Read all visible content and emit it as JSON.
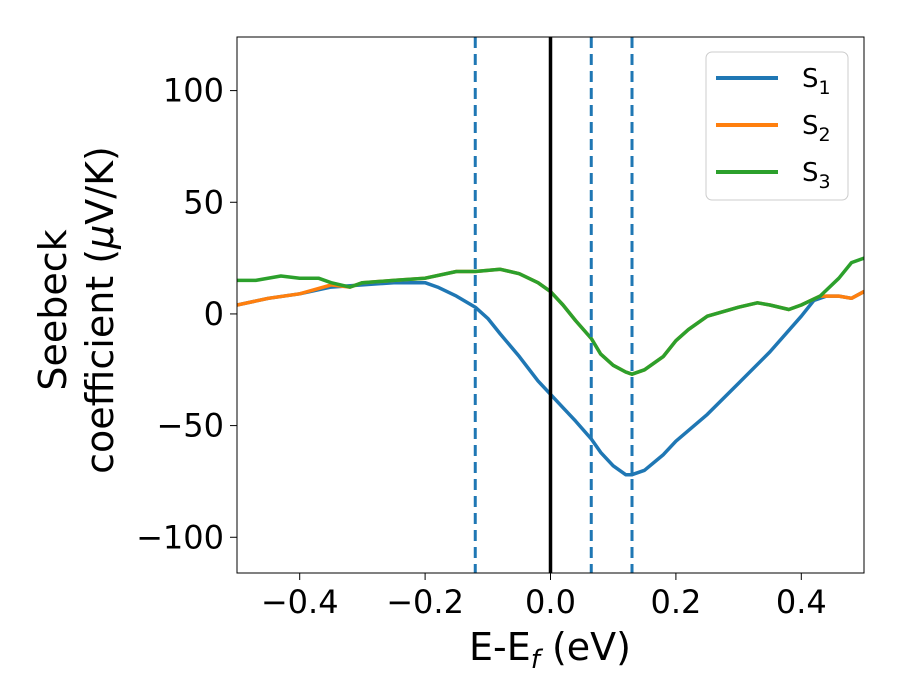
{
  "chart_data": {
    "type": "line",
    "xlabel": "E-E",
    "xlabel_sub": "f",
    "xlabel_unit": " (eV)",
    "ylabel_line1": "Seebeck",
    "ylabel_line2": "coefficient  (",
    "ylabel_mu": "μ",
    "ylabel_unit": "V/K)",
    "xlim": [
      -0.5,
      0.5
    ],
    "ylim": [
      -116,
      124
    ],
    "xticks": [
      -0.4,
      -0.2,
      0.0,
      0.2,
      0.4
    ],
    "xtick_labels": [
      "−0.4",
      "−0.2",
      "0.0",
      "0.2",
      "0.4"
    ],
    "yticks": [
      -100,
      -50,
      0,
      50,
      100
    ],
    "ytick_labels": [
      "−100",
      "−50",
      "0",
      "50",
      "100"
    ],
    "grid": false,
    "legend_position": "top-right",
    "vertical_lines": [
      {
        "x": 0.0,
        "style": "solid",
        "color": "#000000"
      },
      {
        "x": -0.12,
        "style": "dashed",
        "color": "#1f77b4"
      },
      {
        "x": 0.065,
        "style": "dashed",
        "color": "#1f77b4"
      },
      {
        "x": 0.13,
        "style": "dashed",
        "color": "#1f77b4"
      }
    ],
    "series": [
      {
        "name": "S",
        "sub": "1",
        "color": "#1f77b4",
        "x": [
          -0.5,
          -0.45,
          -0.4,
          -0.35,
          -0.3,
          -0.25,
          -0.2,
          -0.18,
          -0.15,
          -0.12,
          -0.1,
          -0.08,
          -0.05,
          -0.02,
          0.0,
          0.02,
          0.04,
          0.065,
          0.08,
          0.1,
          0.12,
          0.13,
          0.15,
          0.18,
          0.2,
          0.25,
          0.3,
          0.35,
          0.4,
          0.42,
          0.44,
          0.46,
          0.48,
          0.5
        ],
        "y": [
          4,
          7,
          9,
          12,
          13,
          14,
          14,
          12,
          8,
          3,
          -2,
          -9,
          -19,
          -30,
          -36,
          -42,
          -48,
          -56,
          -62,
          -68,
          -72,
          -72,
          -70,
          -63,
          -57,
          -45,
          -31,
          -17,
          -1,
          6,
          8,
          8,
          7,
          10
        ]
      },
      {
        "name": "S",
        "sub": "2",
        "color": "#ff7f0e",
        "x": [
          -0.5,
          -0.45,
          -0.4,
          -0.35,
          -0.32,
          -0.3,
          -0.25,
          -0.2,
          -0.15,
          -0.12,
          -0.08,
          -0.05,
          -0.02,
          0.0,
          0.02,
          0.04,
          0.065,
          0.08,
          0.1,
          0.12,
          0.13,
          0.15,
          0.18,
          0.2,
          0.22,
          0.25,
          0.3,
          0.33,
          0.35,
          0.38,
          0.4,
          0.43,
          0.46,
          0.48,
          0.5
        ],
        "y": [
          4,
          7,
          9,
          13,
          12,
          14,
          15,
          16,
          19,
          19,
          20,
          18,
          14,
          10,
          4,
          -3,
          -11,
          -18,
          -23,
          -26,
          -27,
          -25,
          -19,
          -12,
          -7,
          -1,
          3,
          5,
          4,
          2,
          4,
          8,
          8,
          7,
          10
        ]
      },
      {
        "name": "S",
        "sub": "3",
        "color": "#2ca02c",
        "x": [
          -0.5,
          -0.47,
          -0.43,
          -0.4,
          -0.37,
          -0.35,
          -0.32,
          -0.3,
          -0.25,
          -0.2,
          -0.15,
          -0.12,
          -0.08,
          -0.05,
          -0.02,
          0.0,
          0.02,
          0.04,
          0.065,
          0.08,
          0.1,
          0.12,
          0.13,
          0.15,
          0.18,
          0.2,
          0.22,
          0.25,
          0.3,
          0.33,
          0.35,
          0.38,
          0.4,
          0.43,
          0.46,
          0.48,
          0.5
        ],
        "y": [
          15,
          15,
          17,
          16,
          16,
          14,
          12,
          14,
          15,
          16,
          19,
          19,
          20,
          18,
          14,
          10,
          4,
          -3,
          -11,
          -18,
          -23,
          -26,
          -27,
          -25,
          -19,
          -12,
          -7,
          -1,
          3,
          5,
          4,
          2,
          4,
          8,
          16,
          23,
          25
        ]
      }
    ]
  }
}
